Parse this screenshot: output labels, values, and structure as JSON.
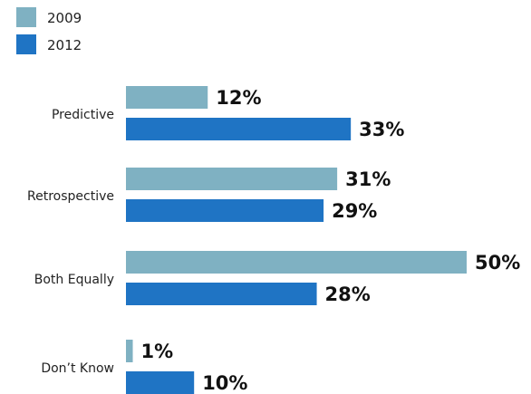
{
  "chart_data": {
    "type": "bar",
    "orientation": "horizontal",
    "categories": [
      "Predictive",
      "Retrospective",
      "Both Equally",
      "Don’t Know"
    ],
    "series": [
      {
        "name": "2009",
        "values": [
          12,
          31,
          50,
          1
        ],
        "labels": [
          "12%",
          "31%",
          "50%",
          "1%"
        ],
        "color": "#7fb1c2"
      },
      {
        "name": "2012",
        "values": [
          33,
          29,
          28,
          10
        ],
        "labels": [
          "33%",
          "29%",
          "28%",
          "10%"
        ],
        "color": "#1f74c4"
      }
    ],
    "legend_position": "top-left",
    "xlim": [
      0,
      50
    ],
    "grid": false
  }
}
